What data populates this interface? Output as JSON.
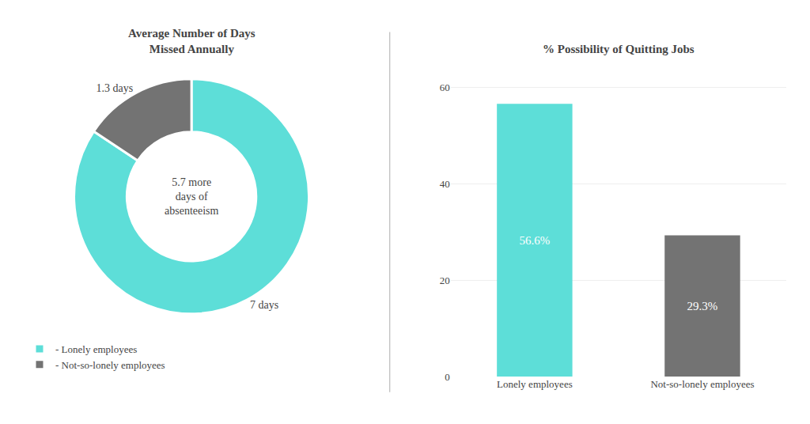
{
  "chart_data": [
    {
      "type": "pie",
      "title": "Average Number of Days\nMissed Annually",
      "categories": [
        "- Lonely employees",
        "- Not-so-lonely employees"
      ],
      "values": [
        7,
        1.3
      ],
      "value_labels": [
        "7 days",
        "1.3 days"
      ],
      "colors": [
        "#5DDED8",
        "#737373"
      ],
      "data_labels": true,
      "legend": "lower left",
      "annotations": [
        "5.7 more\ndays of\nabsenteeism"
      ]
    },
    {
      "type": "bar",
      "title": "% Possibility of Quitting Jobs",
      "categories": [
        "Lonely employees",
        "Not-so-lonely employees"
      ],
      "values": [
        56.6,
        29.3
      ],
      "value_labels": [
        "56.6%",
        "29.3%"
      ],
      "colors": [
        "#5DDED8",
        "#737373"
      ],
      "data_labels": true,
      "ylim": [
        0,
        65
      ],
      "yticks": [
        0,
        20,
        40,
        60
      ],
      "grid": true
    }
  ]
}
